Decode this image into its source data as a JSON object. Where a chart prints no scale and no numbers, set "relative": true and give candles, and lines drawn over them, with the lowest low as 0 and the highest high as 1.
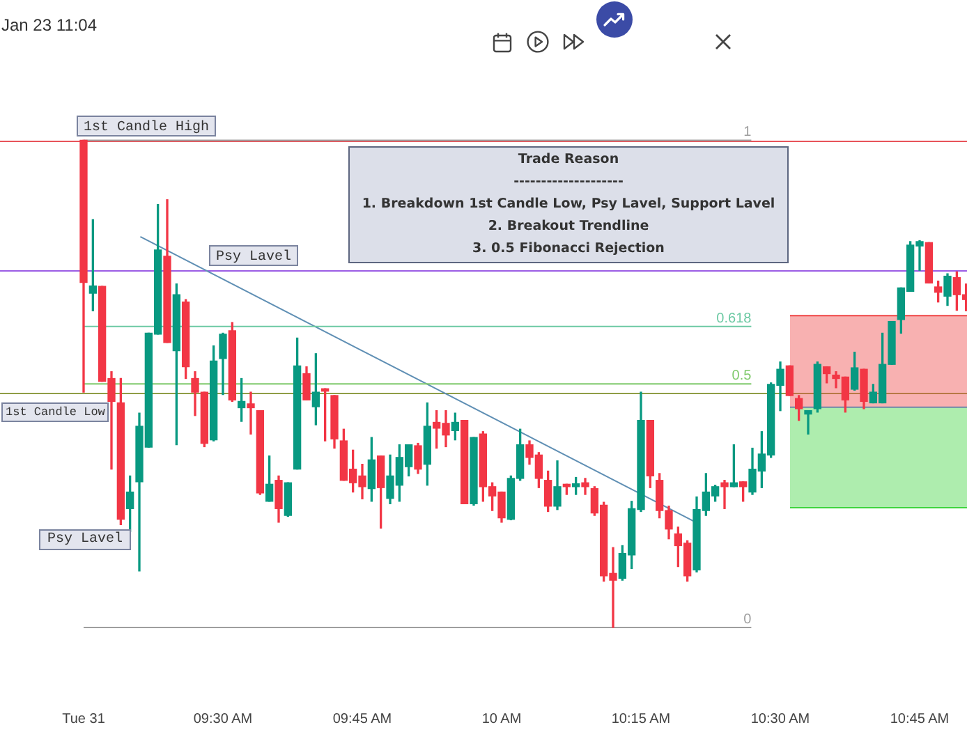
{
  "chart_data": {
    "type": "candlestick",
    "relative": true,
    "x": [
      9.25,
      9.2667,
      9.2833,
      9.3,
      9.3167,
      9.3333,
      9.35,
      9.3667,
      9.3833,
      9.4,
      9.4167,
      9.4333,
      9.45,
      9.4667,
      9.4833,
      9.5,
      9.5167,
      9.5333,
      9.55,
      9.5667,
      9.5833,
      9.6,
      9.6167,
      9.6333,
      9.65,
      9.6667,
      9.6833,
      9.7,
      9.7167,
      9.7333,
      9.75,
      9.7667,
      9.7833,
      9.8,
      9.8167,
      9.8333,
      9.85,
      9.8667,
      9.8833,
      9.9,
      9.9167,
      9.9333,
      9.95,
      9.9667,
      9.9833,
      10,
      10.0167,
      10.0333,
      10.05,
      10.0667,
      10.0833,
      10.1,
      10.1167,
      10.1333,
      10.15,
      10.1667,
      10.1833,
      10.2,
      10.2167,
      10.2333,
      10.25,
      10.2667,
      10.2833,
      10.3,
      10.3167,
      10.3333,
      10.35,
      10.3667,
      10.3833,
      10.4,
      10.4167,
      10.4333,
      10.45,
      10.4667,
      10.4833,
      10.5,
      10.5167,
      10.5333,
      10.55,
      10.5667,
      10.5833,
      10.6,
      10.6167,
      10.6333,
      10.65,
      10.6667,
      10.6833,
      10.7,
      10.7167,
      10.7333,
      10.75,
      10.7667,
      10.7833,
      10.8,
      10.8167,
      10.8333
    ],
    "ohlc": [
      [
        1,
        1,
        0.483,
        0.708
      ],
      [
        0.686,
        0.837,
        0.65,
        0.701
      ],
      [
        0.7,
        0.7,
        0.505,
        0.505
      ],
      [
        0.511,
        0.525,
        0.325,
        0.464
      ],
      [
        0.461,
        0.511,
        0.211,
        0.222
      ],
      [
        0.244,
        0.311,
        0.197,
        0.278
      ],
      [
        0.299,
        0.44,
        0.116,
        0.413
      ],
      [
        0.37,
        0.604,
        0.37,
        0.604
      ],
      [
        0.602,
        0.868,
        0.602,
        0.775
      ],
      [
        0.762,
        0.878,
        0.585,
        0.585
      ],
      [
        0.568,
        0.705,
        0.375,
        0.683
      ],
      [
        0.668,
        0.673,
        0.511,
        0.535
      ],
      [
        0.511,
        0.525,
        0.435,
        0.483
      ],
      [
        0.483,
        0.483,
        0.371,
        0.378
      ],
      [
        0.385,
        0.578,
        0.383,
        0.547
      ],
      [
        0.552,
        0.604,
        0.478,
        0.602
      ],
      [
        0.609,
        0.626,
        0.464,
        0.467
      ],
      [
        0.451,
        0.511,
        0.423,
        0.464
      ],
      [
        0.459,
        0.483,
        0.397,
        0.451
      ],
      [
        0.445,
        0.445,
        0.273,
        0.276
      ],
      [
        0.259,
        0.352,
        0.259,
        0.294
      ],
      [
        0.302,
        0.311,
        0.216,
        0.244
      ],
      [
        0.23,
        0.297,
        0.228,
        0.297
      ],
      [
        0.325,
        0.594,
        0.325,
        0.537
      ],
      [
        0.521,
        0.535,
        0.467,
        0.467
      ],
      [
        0.453,
        0.562,
        0.416,
        0.483
      ],
      [
        0.49,
        0.49,
        0.383,
        0.485
      ],
      [
        0.476,
        0.476,
        0.368,
        0.387
      ],
      [
        0.383,
        0.407,
        0.302,
        0.302
      ],
      [
        0.325,
        0.364,
        0.278,
        0.297
      ],
      [
        0.311,
        0.335,
        0.264,
        0.289
      ],
      [
        0.285,
        0.39,
        0.259,
        0.344
      ],
      [
        0.352,
        0.352,
        0.204,
        0.287
      ],
      [
        0.265,
        0.354,
        0.254,
        0.311
      ],
      [
        0.292,
        0.375,
        0.259,
        0.349
      ],
      [
        0.33,
        0.375,
        0.311,
        0.375
      ],
      [
        0.373,
        0.378,
        0.316,
        0.325
      ],
      [
        0.335,
        0.461,
        0.292,
        0.413
      ],
      [
        0.421,
        0.445,
        0.368,
        0.409
      ],
      [
        0.419,
        0.445,
        0.371,
        0.395
      ],
      [
        0.404,
        0.44,
        0.385,
        0.421
      ],
      [
        0.425,
        0.425,
        0.254,
        0.254
      ],
      [
        0.254,
        0.39,
        0.251,
        0.39
      ],
      [
        0.397,
        0.402,
        0.259,
        0.289
      ],
      [
        0.289,
        0.297,
        0.24,
        0.27
      ],
      [
        0.278,
        0.278,
        0.216,
        0.225
      ],
      [
        0.222,
        0.311,
        0.221,
        0.306
      ],
      [
        0.306,
        0.407,
        0.302,
        0.375
      ],
      [
        0.375,
        0.383,
        0.335,
        0.349
      ],
      [
        0.354,
        0.359,
        0.287,
        0.306
      ],
      [
        0.302,
        0.321,
        0.238,
        0.249
      ],
      [
        0.249,
        0.342,
        0.242,
        0.289
      ],
      [
        0.294,
        0.294,
        0.273,
        0.289
      ],
      [
        0.289,
        0.308,
        0.273,
        0.295
      ],
      [
        0.297,
        0.306,
        0.273,
        0.289
      ],
      [
        0.285,
        0.289,
        0.23,
        0.235
      ],
      [
        0.251,
        0.257,
        0.095,
        0.106
      ],
      [
        0.111,
        0.164,
        0,
        0.097
      ],
      [
        0.101,
        0.168,
        0.097,
        0.152
      ],
      [
        0.149,
        0.259,
        0.121,
        0.244
      ],
      [
        0.242,
        0.483,
        0.238,
        0.425
      ],
      [
        0.425,
        0.425,
        0.287,
        0.311
      ],
      [
        0.302,
        0.316,
        0.225,
        0.24
      ],
      [
        0.24,
        0.249,
        0.182,
        0.202
      ],
      [
        0.192,
        0.206,
        0.125,
        0.168
      ],
      [
        0.173,
        0.178,
        0.095,
        0.106
      ],
      [
        0.118,
        0.268,
        0.114,
        0.242
      ],
      [
        0.24,
        0.316,
        0.23,
        0.278
      ],
      [
        0.27,
        0.292,
        0.259,
        0.289
      ],
      [
        0.297,
        0.302,
        0.244,
        0.289
      ],
      [
        0.289,
        0.375,
        0.289,
        0.297
      ],
      [
        0.299,
        0.299,
        0.259,
        0.289
      ],
      [
        0.278,
        0.368,
        0.273,
        0.325
      ],
      [
        0.321,
        0.402,
        0.287,
        0.356
      ],
      [
        0.354,
        0.502,
        0.349,
        0.499
      ],
      [
        0.497,
        0.545,
        0.445,
        0.53
      ],
      [
        0.537,
        0.537,
        0.476,
        0.476
      ],
      [
        0.47,
        0.476,
        0.425,
        0.449
      ],
      [
        0.438,
        0.445,
        0.397,
        0.445
      ],
      [
        0.449,
        0.545,
        0.442,
        0.54
      ],
      [
        0.535,
        0.535,
        0.502,
        0.521
      ],
      [
        0.518,
        0.525,
        0.492,
        0.511
      ],
      [
        0.514,
        0.514,
        0.442,
        0.467
      ],
      [
        0.489,
        0.565,
        0.487,
        0.533
      ],
      [
        0.53,
        0.53,
        0.449,
        0.464
      ],
      [
        0.461,
        0.499,
        0.461,
        0.483
      ],
      [
        0.461,
        0.604,
        0.461,
        0.54
      ],
      [
        0.54,
        0.628,
        0.54,
        0.628
      ],
      [
        0.632,
        0.697,
        0.604,
        0.697
      ],
      [
        0.69,
        0.792,
        0.69,
        0.785
      ],
      [
        0.783,
        0.794,
        0.733,
        0.792
      ],
      [
        0.79,
        0.79,
        0.707,
        0.707
      ],
      [
        0.699,
        0.711,
        0.668,
        0.688
      ],
      [
        0.68,
        0.726,
        0.661,
        0.721
      ],
      [
        0.718,
        0.73,
        0.651,
        0.683
      ],
      [
        0.683,
        0.705,
        0.65,
        0.673
      ]
    ],
    "colors": [
      "#f23645",
      "#089981",
      "#f23645",
      "#f23645",
      "#f23645",
      "#089981",
      "#089981",
      "#089981",
      "#089981",
      "#f23645",
      "#089981",
      "#f23645",
      "#f23645",
      "#f23645",
      "#089981",
      "#089981",
      "#f23645",
      "#089981",
      "#f23645",
      "#f23645",
      "#089981",
      "#f23645",
      "#089981",
      "#089981",
      "#f23645",
      "#089981",
      "#f23645",
      "#f23645",
      "#f23645",
      "#f23645",
      "#f23645",
      "#089981",
      "#f23645",
      "#089981",
      "#089981",
      "#089981",
      "#f23645",
      "#089981",
      "#f23645",
      "#f23645",
      "#089981",
      "#f23645",
      "#089981",
      "#f23645",
      "#f23645",
      "#f23645",
      "#089981",
      "#089981",
      "#f23645",
      "#f23645",
      "#f23645",
      "#089981",
      "#f23645",
      "#089981",
      "#f23645",
      "#f23645",
      "#f23645",
      "#f23645",
      "#089981",
      "#089981",
      "#089981",
      "#f23645",
      "#f23645",
      "#f23645",
      "#f23645",
      "#f23645",
      "#089981",
      "#089981",
      "#089981",
      "#f23645",
      "#089981",
      "#f23645",
      "#089981",
      "#089981",
      "#089981",
      "#089981",
      "#f23645",
      "#f23645",
      "#089981",
      "#089981",
      "#f23645",
      "#f23645",
      "#f23645",
      "#089981",
      "#f23645",
      "#089981",
      "#089981",
      "#089981",
      "#089981",
      "#089981",
      "#089981",
      "#f23645",
      "#f23645",
      "#089981",
      "#f23645",
      "#f23645"
    ],
    "series": [
      {
        "type": "line",
        "name": "1",
        "color": "#9e9e9e",
        "x": [
          9.25,
          10.448
        ],
        "values": [
          1,
          1
        ]
      },
      {
        "type": "line",
        "name": "0.618",
        "color": "#6cc9a3",
        "x": [
          9.25,
          10.448
        ],
        "values": [
          0.618,
          0.618
        ]
      },
      {
        "type": "line",
        "name": "0.5",
        "color": "#7fc96b",
        "x": [
          9.25,
          10.448
        ],
        "values": [
          0.5,
          0.5
        ]
      },
      {
        "type": "line",
        "name": "0",
        "color": "#9e9e9e",
        "x": [
          9.25,
          10.448
        ],
        "values": [
          0,
          0
        ]
      },
      {
        "type": "line",
        "color": "#5f8fb4",
        "x": [
          9.3518,
          10.3483
        ],
        "values": [
          0.802,
          0.216
        ]
      },
      {
        "type": "line",
        "color": "#ef4444",
        "x": [
          10.5175,
          10.835
        ],
        "values": [
          0.64,
          0.64
        ],
        "lower": [
          0.452,
          0.452
        ],
        "upper": [
          0.64,
          0.64
        ]
      },
      {
        "type": "line",
        "color": "#3fd43f",
        "x": [
          10.5175,
          10.835
        ],
        "values": [
          0.246,
          0.246
        ],
        "lower": [
          0.246,
          0.246
        ],
        "upper": [
          0.452,
          0.452
        ]
      },
      {
        "type": "line",
        "color": "#6f86a8",
        "x": [
          10.5175,
          10.835
        ],
        "values": [
          0.452,
          0.452
        ]
      }
    ],
    "ref_lines": [
      {
        "axis": "y",
        "value": 1,
        "label": "1st Candle High",
        "color": "#e8545a"
      },
      {
        "axis": "y",
        "value": 0.733,
        "label": "Psy Lavel",
        "color": "#9b5de5"
      },
      {
        "axis": "y",
        "value": 0.483,
        "label": "1st Candle Low",
        "color": "#8f9d45"
      }
    ],
    "annotations": [
      "Jan 23 11:04",
      "Trade Reason\n--------------------\n1. Breakdown 1st Candle Low, Psy Lavel, Support Lavel\n2. Breakout Trendline\n3. 0.5 Fibonacci Rejection",
      "Psy Lavel"
    ],
    "xlim": [
      9.1,
      10.835
    ],
    "xticks": [
      {
        "value": 9.25,
        "label": "Tue 31"
      },
      {
        "value": 9.5,
        "label": "09:30 AM"
      },
      {
        "value": 9.75,
        "label": "09:45 AM"
      },
      {
        "value": 10,
        "label": "10 AM"
      },
      {
        "value": 10.25,
        "label": "10:15 AM"
      },
      {
        "value": 10.5,
        "label": "10:30 AM"
      },
      {
        "value": 10.75,
        "label": "10:45 AM"
      }
    ]
  }
}
